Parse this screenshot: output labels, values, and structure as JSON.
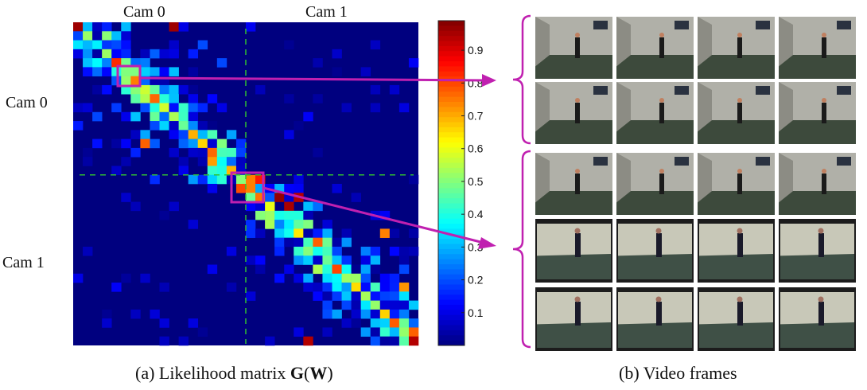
{
  "matrix_panel": {
    "top_labels": [
      "Cam 0",
      "Cam 1"
    ],
    "side_labels": [
      "Cam 0",
      "Cam 1"
    ],
    "caption_prefix": "(a) Likelihood matrix ",
    "caption_G": "G",
    "caption_W": "W",
    "colorbar_ticks": [
      "0.1",
      "0.2",
      "0.3",
      "0.4",
      "0.5",
      "0.6",
      "0.7",
      "0.8",
      "0.9"
    ]
  },
  "frames_panel": {
    "caption": "(b) Video frames",
    "group1_rows": 2,
    "group2_rows": 3,
    "frames_per_row": 4
  },
  "colors": {
    "matrix_bg": "#00007f",
    "highlight": "#c020b0",
    "dashed": "#30c030"
  }
}
